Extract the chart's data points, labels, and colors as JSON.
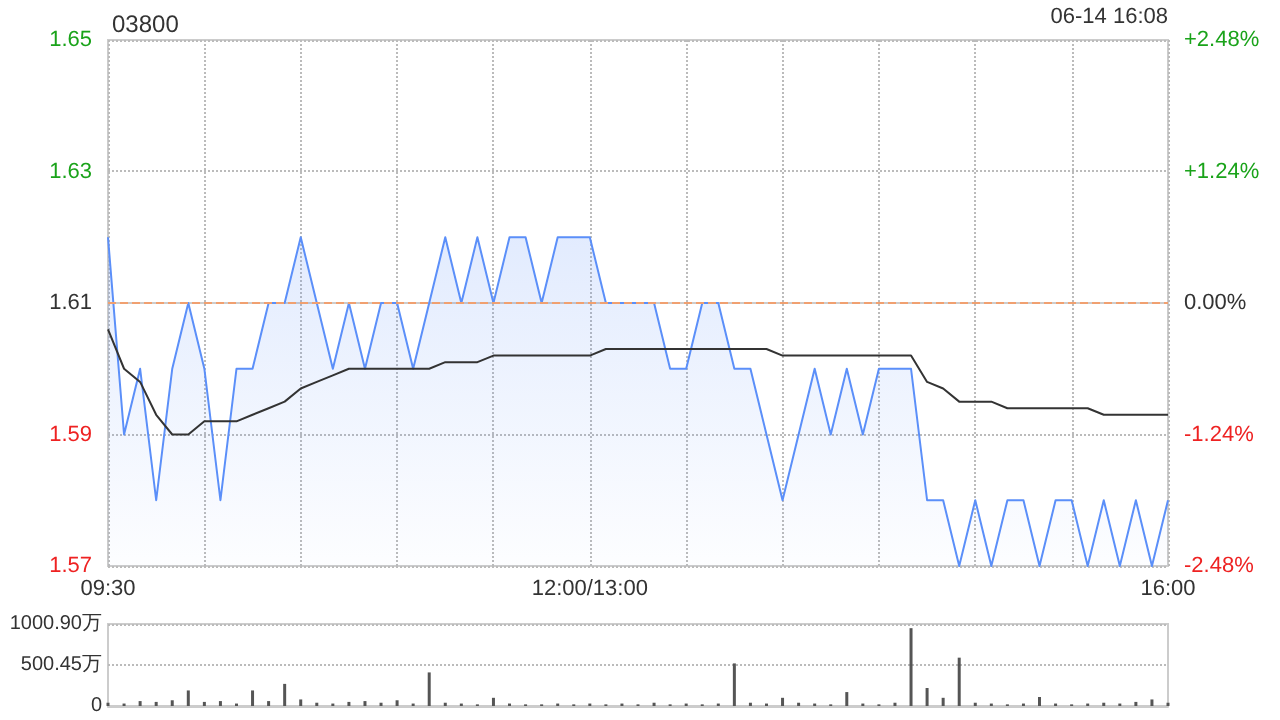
{
  "chart_data": [
    {
      "type": "line",
      "title": "03800",
      "annotations": [
        "06-14 16:08"
      ],
      "categories": [
        "09:30",
        null,
        null,
        null,
        null,
        null,
        null,
        null,
        null,
        null,
        null,
        null,
        null,
        null,
        null,
        null,
        null,
        null,
        null,
        null,
        null,
        null,
        null,
        null,
        null,
        null,
        null,
        null,
        null,
        null,
        "12:00/13:00",
        null,
        null,
        null,
        null,
        null,
        null,
        null,
        null,
        null,
        null,
        null,
        null,
        null,
        null,
        null,
        null,
        null,
        null,
        null,
        null,
        null,
        null,
        null,
        null,
        null,
        null,
        null,
        null,
        null,
        null,
        null,
        null,
        null,
        null,
        null,
        "16:00"
      ],
      "series": [
        {
          "type": "area",
          "color": "#5b8ff9",
          "values": [
            1.62,
            1.59,
            1.6,
            1.58,
            1.6,
            1.61,
            1.6,
            1.58,
            1.6,
            1.6,
            1.61,
            1.61,
            1.62,
            1.61,
            1.6,
            1.61,
            1.6,
            1.61,
            1.61,
            1.6,
            1.61,
            1.62,
            1.61,
            1.62,
            1.61,
            1.62,
            1.62,
            1.61,
            1.62,
            1.62,
            1.62,
            1.61,
            1.61,
            1.61,
            1.61,
            1.6,
            1.6,
            1.61,
            1.61,
            1.6,
            1.6,
            1.59,
            1.58,
            1.59,
            1.6,
            1.59,
            1.6,
            1.59,
            1.6,
            1.6,
            1.6,
            1.58,
            1.58,
            1.57,
            1.58,
            1.57,
            1.58,
            1.58,
            1.57,
            1.58,
            1.58,
            1.57,
            1.58,
            1.57,
            1.58,
            1.57,
            1.58
          ]
        },
        {
          "color": "#333333",
          "values": [
            1.606,
            1.6,
            1.598,
            1.593,
            1.59,
            1.59,
            1.592,
            1.592,
            1.592,
            1.593,
            1.594,
            1.595,
            1.597,
            1.598,
            1.599,
            1.6,
            1.6,
            1.6,
            1.6,
            1.6,
            1.6,
            1.601,
            1.601,
            1.601,
            1.602,
            1.602,
            1.602,
            1.602,
            1.602,
            1.602,
            1.602,
            1.603,
            1.603,
            1.603,
            1.603,
            1.603,
            1.603,
            1.603,
            1.603,
            1.603,
            1.603,
            1.603,
            1.602,
            1.602,
            1.602,
            1.602,
            1.602,
            1.602,
            1.602,
            1.602,
            1.602,
            1.598,
            1.597,
            1.595,
            1.595,
            1.595,
            1.594,
            1.594,
            1.594,
            1.594,
            1.594,
            1.594,
            1.593,
            1.593,
            1.593,
            1.593,
            1.593
          ]
        }
      ],
      "ylim": [
        1.57,
        1.65
      ],
      "yticks": [
        1.57,
        1.59,
        1.61,
        1.63,
        1.65
      ],
      "y2lim": [
        -2.48,
        2.48
      ],
      "y2ticks": [
        {
          "value": -2.48,
          "label": "-2.48%"
        },
        {
          "value": -1.24,
          "label": "-1.24%"
        },
        {
          "value": 0,
          "label": "0.00%"
        },
        {
          "value": 1.24,
          "label": "+1.24%"
        },
        {
          "value": 2.48,
          "label": "+2.48%"
        }
      ],
      "ref_lines": [
        {
          "axis": "y",
          "value": 1.61,
          "color": "#f0a070",
          "line_style": "dashed"
        }
      ],
      "grid": true
    },
    {
      "type": "bar",
      "color": "#555555",
      "categories": [
        null,
        null,
        null,
        null,
        null,
        null,
        null,
        null,
        null,
        null,
        null,
        null,
        null,
        null,
        null,
        null,
        null,
        null,
        null,
        null,
        null,
        null,
        null,
        null,
        null,
        null,
        null,
        null,
        null,
        null,
        null,
        null,
        null,
        null,
        null,
        null,
        null,
        null,
        null,
        null,
        null,
        null,
        null,
        null,
        null,
        null,
        null,
        null,
        null,
        null,
        null,
        null,
        null,
        null,
        null,
        null,
        null,
        null,
        null,
        null,
        null,
        null,
        null,
        null,
        null,
        null,
        null
      ],
      "values": [
        40,
        30,
        60,
        50,
        70,
        190,
        50,
        60,
        30,
        190,
        60,
        270,
        80,
        40,
        30,
        50,
        60,
        40,
        70,
        30,
        410,
        40,
        30,
        20,
        100,
        30,
        20,
        20,
        30,
        20,
        30,
        20,
        30,
        20,
        40,
        20,
        30,
        20,
        30,
        520,
        40,
        30,
        100,
        40,
        30,
        20,
        170,
        30,
        20,
        40,
        950,
        220,
        100,
        590,
        40,
        30,
        20,
        30,
        110,
        30,
        20,
        30,
        40,
        30,
        50,
        80,
        40
      ],
      "ylim": [
        0,
        1000.9
      ],
      "yticks": [
        0,
        {
          "value": 500.45,
          "label": "500.45万"
        },
        {
          "value": 1000.9,
          "label": "1000.90万"
        }
      ],
      "tick_labels": "y",
      "grid": "y"
    }
  ]
}
